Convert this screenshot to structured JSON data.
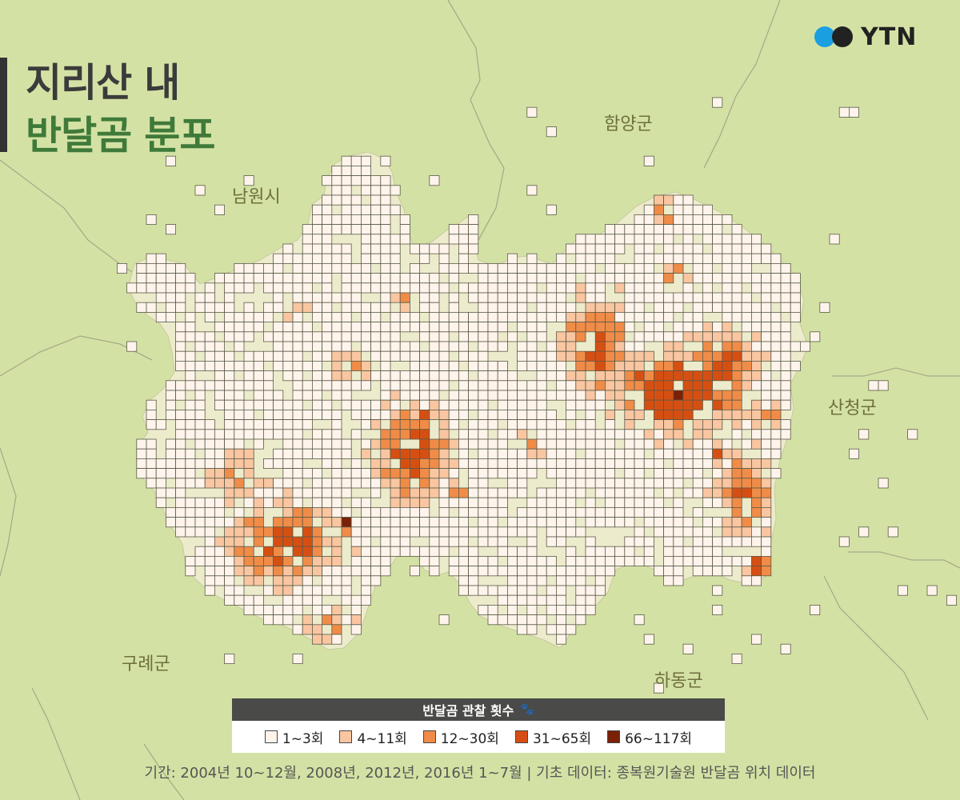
{
  "title": {
    "line1": "지리산 내",
    "line2": "반달곰 분포"
  },
  "logo": {
    "text": "YTN"
  },
  "regions": [
    {
      "name": "함양군"
    },
    {
      "name": "남원시"
    },
    {
      "name": "산청군"
    },
    {
      "name": "구례군"
    },
    {
      "name": "하동군"
    }
  ],
  "legend": {
    "title": "반달곰 관찰 횟수",
    "icon": "paw-icon",
    "items": [
      {
        "label": "1~3회",
        "color": "#fff4ec"
      },
      {
        "label": "4~11회",
        "color": "#f9c6a1"
      },
      {
        "label": "12~30회",
        "color": "#f08c48"
      },
      {
        "label": "31~65회",
        "color": "#d64f12"
      },
      {
        "label": "66~117회",
        "color": "#7a2107"
      }
    ]
  },
  "footer": "기간: 2004년 10~12월, 2008년, 2012년, 2016년 1~7월  |  기초 데이터: 종복원기술원 반달곰 위치 데이터",
  "colors": {
    "land": "#d3e2a4",
    "park": "#ecebcb",
    "boundary": "#a9ab88",
    "cell_border": "#5a5a48"
  }
}
